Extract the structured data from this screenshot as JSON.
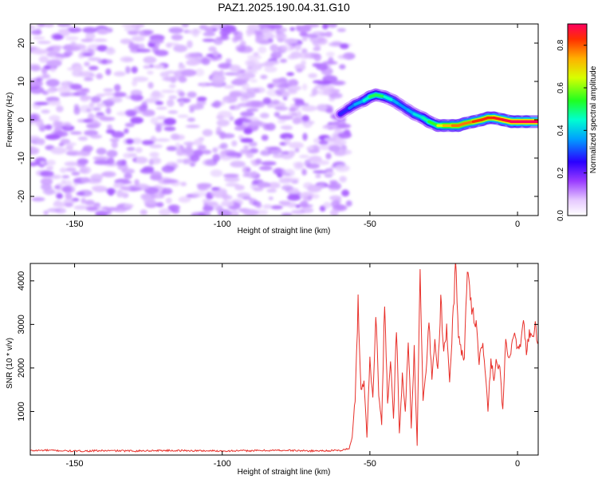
{
  "title": "PAZ1.2025.190.04.31.G10",
  "colors": {
    "snr_line": "#e8302a",
    "axis": "#000000",
    "background": "#ffffff"
  },
  "chart_data": [
    {
      "type": "heatmap",
      "xlabel": "Height of straight line (km)",
      "ylabel": "Frequency (Hz)",
      "xlim": [
        -165,
        7
      ],
      "ylim": [
        -25,
        25
      ],
      "x_ticks": [
        {
          "value": -150,
          "label": "-150"
        },
        {
          "value": -100,
          "label": "-100"
        },
        {
          "value": -50,
          "label": "-50"
        },
        {
          "value": 0,
          "label": "0"
        }
      ],
      "y_ticks": [
        {
          "value": -20,
          "label": "-20"
        },
        {
          "value": -10,
          "label": "-10"
        },
        {
          "value": 0,
          "label": "0"
        },
        {
          "value": 10,
          "label": "10"
        },
        {
          "value": 20,
          "label": "20"
        }
      ],
      "colorbar": {
        "label": "Normalized spectral amplitude",
        "range": [
          0,
          0.9
        ],
        "ticks": [
          {
            "value": 0.0,
            "label": "0.0"
          },
          {
            "value": 0.2,
            "label": "0.2"
          },
          {
            "value": 0.4,
            "label": "0.4"
          },
          {
            "value": 0.6,
            "label": "0.6"
          },
          {
            "value": 0.8,
            "label": "0.8"
          }
        ],
        "colormap": "rainbow"
      },
      "noise_region": {
        "x_range": [
          -165,
          -57
        ],
        "amplitude": [
          0.03,
          0.1
        ]
      },
      "signal_ridge": {
        "x": [
          -60,
          -57,
          -55,
          -52,
          -50,
          -48,
          -45,
          -42,
          -40,
          -37,
          -35,
          -32,
          -30,
          -27,
          -25,
          -22,
          -20,
          -18,
          -15,
          -12,
          -10,
          -8,
          -5,
          -2,
          0,
          3,
          7
        ],
        "freq": [
          1.5,
          3,
          4,
          5,
          6,
          6.5,
          6,
          5,
          4,
          2.5,
          1.5,
          0.5,
          -0.5,
          -1.5,
          -1.5,
          -1.5,
          -1.5,
          -1,
          -0.5,
          0,
          0.5,
          0.5,
          0,
          -0.5,
          -0.5,
          -0.5,
          -0.5
        ],
        "amplitude": [
          0.2,
          0.3,
          0.35,
          0.4,
          0.5,
          0.55,
          0.5,
          0.4,
          0.35,
          0.35,
          0.4,
          0.45,
          0.5,
          0.6,
          0.7,
          0.75,
          0.8,
          0.75,
          0.8,
          0.85,
          0.8,
          0.85,
          0.85,
          0.9,
          0.9,
          0.9,
          0.9
        ]
      }
    },
    {
      "type": "line",
      "xlabel": "Height of straight line (km)",
      "ylabel": "SNR (10 * v/v)",
      "xlim": [
        -165,
        7
      ],
      "ylim": [
        0,
        4400
      ],
      "x_ticks": [
        {
          "value": -150,
          "label": "-150"
        },
        {
          "value": -100,
          "label": "-100"
        },
        {
          "value": -50,
          "label": "-50"
        },
        {
          "value": 0,
          "label": "0"
        }
      ],
      "y_ticks": [
        {
          "value": 1000,
          "label": "1000"
        },
        {
          "value": 2000,
          "label": "2000"
        },
        {
          "value": 3000,
          "label": "3000"
        },
        {
          "value": 4000,
          "label": "4000"
        }
      ],
      "series": [
        {
          "x": [
            -165,
            -160,
            -150,
            -140,
            -130,
            -120,
            -110,
            -100,
            -90,
            -80,
            -70,
            -60,
            -57,
            -56,
            -55,
            -54,
            -53,
            -52,
            -51,
            -50,
            -49,
            -48,
            -47,
            -46,
            -45,
            -44,
            -43,
            -42,
            -41,
            -40,
            -39,
            -38,
            -37,
            -36,
            -35,
            -34,
            -33,
            -32,
            -31,
            -30,
            -29,
            -28,
            -27,
            -26,
            -25,
            -24,
            -23,
            -22,
            -21,
            -20,
            -19,
            -18,
            -17,
            -16,
            -15,
            -14,
            -13,
            -12,
            -11,
            -10,
            -9,
            -8,
            -7,
            -6,
            -5,
            -4,
            -3,
            -2,
            -1,
            0,
            1,
            2,
            3,
            4,
            5,
            6,
            7
          ],
          "y": [
            100,
            110,
            90,
            100,
            95,
            105,
            100,
            95,
            100,
            110,
            95,
            105,
            150,
            400,
            1300,
            3500,
            1500,
            1700,
            400,
            2200,
            1300,
            3300,
            1400,
            700,
            3600,
            1200,
            2200,
            800,
            2900,
            500,
            1800,
            1000,
            2700,
            600,
            2400,
            200,
            4400,
            1300,
            1800,
            3100,
            1800,
            2600,
            1900,
            3600,
            2300,
            2900,
            1600,
            3000,
            4400,
            2800,
            2400,
            2200,
            4400,
            3500,
            3300,
            3000,
            2200,
            2600,
            2000,
            1000,
            2200,
            1800,
            2200,
            2000,
            1000,
            2600,
            2200,
            2400,
            2800,
            2400,
            2500,
            3000,
            2400,
            2800,
            2600,
            3000,
            2600
          ]
        }
      ]
    }
  ]
}
